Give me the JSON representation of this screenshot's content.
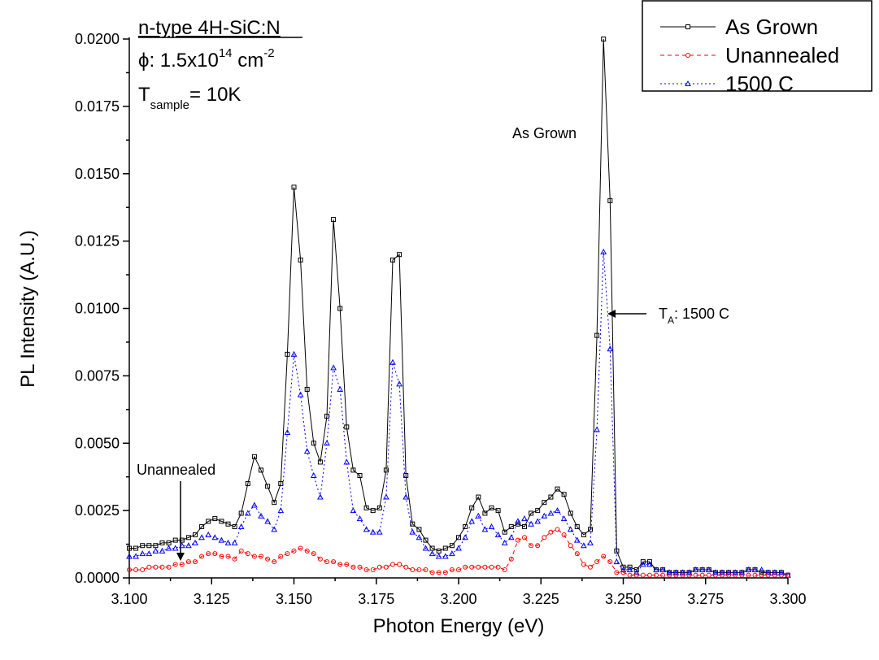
{
  "chart_data": {
    "type": "line",
    "x_label": "Photon Energy (eV)",
    "y_label": "PL Intensity (A.U.)",
    "info": [
      [
        "n-type 4H-SiC:N"
      ],
      [
        "ϕ:  1.5x10",
        "14",
        " cm",
        "-2"
      ],
      [
        "T",
        "sample",
        "= 10K"
      ]
    ],
    "annotations": {
      "as_grown": "As Grown",
      "ta": [
        "T",
        "A",
        ":  1500 C"
      ],
      "unannealed": "Unannealed"
    },
    "xlim": [
      3.1,
      3.3
    ],
    "ylim": [
      0,
      0.02
    ],
    "xticks": [
      {
        "value": 3.1,
        "label": "3.100"
      },
      {
        "value": 3.125,
        "label": "3.125"
      },
      {
        "value": 3.15,
        "label": "3.150"
      },
      {
        "value": 3.175,
        "label": "3.175"
      },
      {
        "value": 3.2,
        "label": "3.200"
      },
      {
        "value": 3.225,
        "label": "3.225"
      },
      {
        "value": 3.25,
        "label": "3.250"
      },
      {
        "value": 3.275,
        "label": "3.275"
      },
      {
        "value": 3.3,
        "label": "3.300"
      }
    ],
    "yticks": [
      {
        "value": 0,
        "label": "0.0000"
      },
      {
        "value": 0.0025,
        "label": "0.0025"
      },
      {
        "value": 0.005,
        "label": "0.0050"
      },
      {
        "value": 0.0075,
        "label": "0.0075"
      },
      {
        "value": 0.01,
        "label": "0.0100"
      },
      {
        "value": 0.0125,
        "label": "0.0125"
      },
      {
        "value": 0.015,
        "label": "0.0150"
      },
      {
        "value": 0.0175,
        "label": "0.0175"
      },
      {
        "value": 0.02,
        "label": "0.0200"
      }
    ],
    "legend_position": "upper right",
    "x": [
      3.1,
      3.102,
      3.104,
      3.106,
      3.108,
      3.11,
      3.112,
      3.114,
      3.116,
      3.118,
      3.12,
      3.122,
      3.124,
      3.126,
      3.128,
      3.13,
      3.132,
      3.134,
      3.136,
      3.138,
      3.14,
      3.142,
      3.144,
      3.146,
      3.148,
      3.15,
      3.152,
      3.154,
      3.156,
      3.158,
      3.16,
      3.162,
      3.164,
      3.166,
      3.168,
      3.17,
      3.172,
      3.174,
      3.176,
      3.178,
      3.18,
      3.182,
      3.184,
      3.186,
      3.188,
      3.19,
      3.192,
      3.194,
      3.196,
      3.198,
      3.2,
      3.202,
      3.204,
      3.206,
      3.208,
      3.21,
      3.212,
      3.214,
      3.216,
      3.218,
      3.22,
      3.222,
      3.224,
      3.226,
      3.228,
      3.23,
      3.232,
      3.234,
      3.236,
      3.238,
      3.24,
      3.242,
      3.244,
      3.246,
      3.248,
      3.25,
      3.252,
      3.254,
      3.256,
      3.258,
      3.26,
      3.262,
      3.264,
      3.266,
      3.268,
      3.27,
      3.272,
      3.274,
      3.276,
      3.278,
      3.28,
      3.282,
      3.284,
      3.286,
      3.288,
      3.29,
      3.292,
      3.294,
      3.296,
      3.298,
      3.3
    ],
    "series": [
      {
        "name": "As Grown",
        "color": "#000000",
        "dash": "solid",
        "marker": "square",
        "values": [
          0.0011,
          0.0011,
          0.0012,
          0.0012,
          0.0012,
          0.0013,
          0.0013,
          0.0014,
          0.0014,
          0.0015,
          0.0016,
          0.0019,
          0.0021,
          0.0022,
          0.0021,
          0.002,
          0.0019,
          0.0024,
          0.0035,
          0.0045,
          0.004,
          0.0034,
          0.0028,
          0.0035,
          0.0083,
          0.0145,
          0.0118,
          0.007,
          0.005,
          0.0043,
          0.006,
          0.0133,
          0.01,
          0.0056,
          0.004,
          0.0038,
          0.0026,
          0.0025,
          0.0026,
          0.004,
          0.0118,
          0.012,
          0.0038,
          0.002,
          0.0018,
          0.0014,
          0.0011,
          0.001,
          0.0011,
          0.0012,
          0.0015,
          0.0019,
          0.0026,
          0.003,
          0.0024,
          0.0026,
          0.0025,
          0.0017,
          0.0019,
          0.002,
          0.0019,
          0.0024,
          0.0025,
          0.0028,
          0.003,
          0.0033,
          0.0031,
          0.0024,
          0.0019,
          0.0016,
          0.0018,
          0.009,
          0.02,
          0.014,
          0.001,
          0.0004,
          0.0004,
          0.0003,
          0.0006,
          0.0006,
          0.0003,
          0.0003,
          0.0002,
          0.0002,
          0.0002,
          0.0002,
          0.0003,
          0.0003,
          0.0003,
          0.0002,
          0.0002,
          0.0002,
          0.0002,
          0.0002,
          0.0003,
          0.0003,
          0.0002,
          0.0002,
          0.0002,
          0.0002,
          0.0001
        ]
      },
      {
        "name": "Unannealed",
        "color": "#ff0000",
        "dash": "dashed",
        "marker": "circle",
        "values": [
          0.0003,
          0.0003,
          0.0003,
          0.0004,
          0.0004,
          0.0004,
          0.0004,
          0.0005,
          0.0005,
          0.0006,
          0.0006,
          0.0008,
          0.0009,
          0.0009,
          0.0008,
          0.0008,
          0.0007,
          0.001,
          0.0009,
          0.0008,
          0.0008,
          0.0007,
          0.0006,
          0.0008,
          0.0009,
          0.001,
          0.0011,
          0.001,
          0.0009,
          0.0007,
          0.0006,
          0.0006,
          0.0005,
          0.0005,
          0.0004,
          0.0004,
          0.0003,
          0.0003,
          0.0004,
          0.0004,
          0.0005,
          0.0005,
          0.0004,
          0.0003,
          0.0003,
          0.0003,
          0.0002,
          0.0002,
          0.0002,
          0.0003,
          0.0003,
          0.0004,
          0.0004,
          0.0004,
          0.0004,
          0.0004,
          0.0004,
          0.0003,
          0.0007,
          0.0014,
          0.0015,
          0.0012,
          0.0012,
          0.0015,
          0.0017,
          0.0018,
          0.0016,
          0.0012,
          0.0009,
          0.0005,
          0.0004,
          0.0006,
          0.0008,
          0.0006,
          0.0002,
          0.0002,
          0.0001,
          0.0001,
          0.0001,
          0.0001,
          0.0001,
          0.0001,
          0.0001,
          0.0001,
          0.0001,
          0.0001,
          0.0001,
          0.0001,
          0.0001,
          0.0001,
          0.0001,
          0.0001,
          0.0001,
          0.0001,
          0.0001,
          0.0001,
          0.0001,
          0.0001,
          0.0001,
          0.0001,
          0.0001
        ]
      },
      {
        "name": "1500 C",
        "color": "#0000ff",
        "dash": "dotted",
        "marker": "triangle",
        "values": [
          0.0008,
          0.0008,
          0.0009,
          0.0009,
          0.001,
          0.001,
          0.0011,
          0.0011,
          0.0012,
          0.0012,
          0.0013,
          0.0015,
          0.0016,
          0.0015,
          0.0014,
          0.0013,
          0.0013,
          0.0019,
          0.0024,
          0.0027,
          0.0023,
          0.0021,
          0.0018,
          0.0025,
          0.0054,
          0.0083,
          0.0068,
          0.0047,
          0.0038,
          0.003,
          0.005,
          0.0078,
          0.007,
          0.0043,
          0.0025,
          0.0022,
          0.0018,
          0.0017,
          0.0017,
          0.003,
          0.008,
          0.0072,
          0.003,
          0.0017,
          0.0015,
          0.0011,
          0.0009,
          0.0008,
          0.0008,
          0.0009,
          0.0011,
          0.0015,
          0.0021,
          0.0023,
          0.0018,
          0.0019,
          0.0016,
          0.0013,
          0.0015,
          0.0021,
          0.0022,
          0.002,
          0.0021,
          0.0023,
          0.0024,
          0.0025,
          0.0022,
          0.0018,
          0.0014,
          0.0012,
          0.0013,
          0.0055,
          0.0121,
          0.0085,
          0.0006,
          0.0003,
          0.0003,
          0.0002,
          0.0005,
          0.0005,
          0.0003,
          0.0003,
          0.0002,
          0.0002,
          0.0002,
          0.0002,
          0.0003,
          0.0003,
          0.0003,
          0.0002,
          0.0002,
          0.0002,
          0.0002,
          0.0002,
          0.0003,
          0.0003,
          0.0003,
          0.0002,
          0.0002,
          0.0002,
          0.0001
        ]
      }
    ]
  }
}
